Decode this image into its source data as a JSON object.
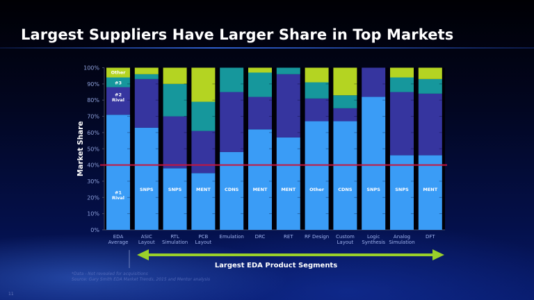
{
  "slide": {
    "title": "Largest Suppliers Have Larger Share in Top Markets",
    "footnote_line1": "*Data - Not revealed for acquisitions",
    "footnote_line2": "Source: Gary Smith EDA Market Trends, 2015 and Mentor analysis",
    "page_number": "11",
    "bracket_label": "Largest EDA Product Segments"
  },
  "chart_data": {
    "type": "bar",
    "stacked": true,
    "ylabel": "Market Share",
    "xlabel": "",
    "ylim": [
      0,
      100
    ],
    "yticks": [
      "0%",
      "10%",
      "20%",
      "30%",
      "40%",
      "50%",
      "60%",
      "70%",
      "80%",
      "90%",
      "100%"
    ],
    "categories": [
      "EDA\nAverage",
      "ASIC\nLayout",
      "RTL\nSimulation",
      "PCB\nLayout",
      "Emulation",
      "DRC",
      "RET",
      "RF Design",
      "Custom\nLayout",
      "Logic\nSynthesis",
      "Analog\nSimulation",
      "DFT"
    ],
    "leader_labels": [
      "#1\nRival",
      "SNPS",
      "SNPS",
      "MENT",
      "CDNS",
      "MENT",
      "MENT",
      "Other",
      "CDNS",
      "SNPS",
      "SNPS",
      "MENT"
    ],
    "segment_labels_on_first_bar": [
      "#1 Rival",
      "#2\nRival",
      "#3",
      "Other"
    ],
    "series": [
      {
        "name": "#1 Rival",
        "color": "#3a9cf6",
        "values": [
          71,
          63,
          38,
          35,
          48,
          62,
          57,
          67,
          67,
          82,
          46,
          46
        ]
      },
      {
        "name": "#2 Rival",
        "color": "#36359f",
        "values": [
          17,
          30,
          32,
          26,
          37,
          20,
          39,
          14,
          8,
          18,
          39,
          38
        ]
      },
      {
        "name": "#3",
        "color": "#16979c",
        "values": [
          6,
          3,
          20,
          18,
          15,
          15,
          4,
          10,
          8,
          0,
          9,
          9
        ]
      },
      {
        "name": "Other",
        "color": "#b4d422",
        "values": [
          6,
          4,
          10,
          21,
          0,
          3,
          0,
          9,
          17,
          0,
          6,
          7
        ]
      }
    ],
    "reference_line": {
      "value": 40,
      "color": "#c8143c"
    },
    "grid": false
  }
}
